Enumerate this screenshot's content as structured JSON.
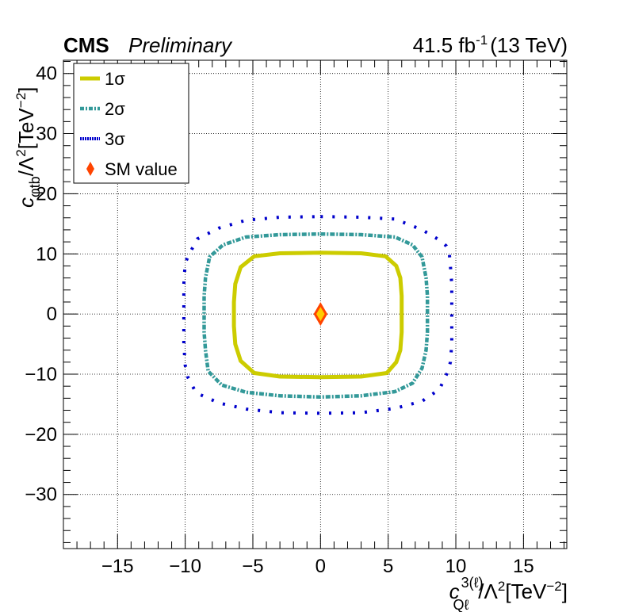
{
  "header": {
    "experiment": "CMS",
    "status": "Preliminary",
    "luminosity": "41.5 fb",
    "luminosity_exp": "-1",
    "energy": "(13 TeV)"
  },
  "axes": {
    "x_label": {
      "var": "c",
      "sub": "Qℓ",
      "sup": "3(ℓ)",
      "rest": "/Λ",
      "rest_sup": "2",
      "unit": "[TeV",
      "unit_sup": "−2",
      "close": "]"
    },
    "y_label": {
      "var": "c",
      "sub": "φtb",
      "rest": "/Λ",
      "rest_sup": "2",
      "unit": "[TeV",
      "unit_sup": "−2",
      "close": "]"
    }
  },
  "legend": {
    "items": [
      {
        "label": "1σ",
        "style": "solid",
        "color": "#cccc00"
      },
      {
        "label": "2σ",
        "style": "dash-dot",
        "color": "#339999"
      },
      {
        "label": "3σ",
        "style": "dotted",
        "color": "#0000cc"
      },
      {
        "label": "SM value",
        "style": "marker",
        "color": "#ff4400"
      }
    ]
  },
  "chart_data": {
    "type": "scatter",
    "subtype": "contour",
    "xlim": [
      -19,
      18.2
    ],
    "ylim": [
      -39,
      42.2
    ],
    "x_ticks": [
      -15,
      -10,
      -5,
      0,
      5,
      10,
      15
    ],
    "x_tick_labels": [
      "−15",
      "−10",
      "−5",
      "0",
      "5",
      "10",
      "15"
    ],
    "y_ticks": [
      -30,
      -20,
      -10,
      0,
      10,
      20,
      30,
      40
    ],
    "y_tick_labels": [
      "−30",
      "−20",
      "−10",
      "0",
      "10",
      "20",
      "30",
      "40"
    ],
    "grid": true,
    "legend_position": "top-left",
    "series": [
      {
        "name": "1σ",
        "color": "#cccc00",
        "style": "solid",
        "points": [
          [
            0,
            10.2
          ],
          [
            3,
            10.1
          ],
          [
            4.8,
            9.6
          ],
          [
            5.6,
            8
          ],
          [
            5.9,
            6
          ],
          [
            6,
            3
          ],
          [
            6,
            0
          ],
          [
            6,
            -3
          ],
          [
            5.9,
            -6
          ],
          [
            5.6,
            -8
          ],
          [
            4.9,
            -9.8
          ],
          [
            3,
            -10.4
          ],
          [
            0,
            -10.5
          ],
          [
            -3,
            -10.4
          ],
          [
            -4.9,
            -9.8
          ],
          [
            -5.9,
            -7.8
          ],
          [
            -6.3,
            -5
          ],
          [
            -6.4,
            -2
          ],
          [
            -6.4,
            0
          ],
          [
            -6.4,
            2
          ],
          [
            -6.3,
            5
          ],
          [
            -5.9,
            7.8
          ],
          [
            -4.9,
            9.6
          ],
          [
            -3,
            10.1
          ],
          [
            0,
            10.2
          ]
        ]
      },
      {
        "name": "2σ",
        "color": "#339999",
        "style": "dash-dot",
        "points": [
          [
            0,
            13.3
          ],
          [
            3,
            13.2
          ],
          [
            5.5,
            12.8
          ],
          [
            6.8,
            11.5
          ],
          [
            7.5,
            9.5
          ],
          [
            7.8,
            6
          ],
          [
            7.9,
            3
          ],
          [
            7.9,
            0
          ],
          [
            7.9,
            -3
          ],
          [
            7.8,
            -6
          ],
          [
            7.5,
            -9
          ],
          [
            6.8,
            -11.5
          ],
          [
            5.5,
            -12.9
          ],
          [
            3,
            -13.6
          ],
          [
            0,
            -13.8
          ],
          [
            -3,
            -13.6
          ],
          [
            -5.5,
            -13
          ],
          [
            -7.3,
            -11.8
          ],
          [
            -8.3,
            -9.5
          ],
          [
            -8.5,
            -6
          ],
          [
            -8.6,
            -3
          ],
          [
            -8.6,
            0
          ],
          [
            -8.6,
            3
          ],
          [
            -8.5,
            6
          ],
          [
            -8.2,
            9.5
          ],
          [
            -7.2,
            11.5
          ],
          [
            -5.5,
            12.8
          ],
          [
            -3,
            13.2
          ],
          [
            0,
            13.3
          ]
        ]
      },
      {
        "name": "3σ",
        "color": "#0000cc",
        "style": "dotted",
        "points": [
          [
            0,
            16.2
          ],
          [
            3,
            16.1
          ],
          [
            5.5,
            15.8
          ],
          [
            7.5,
            14
          ],
          [
            8.8,
            12.3
          ],
          [
            9.3,
            11.3
          ],
          [
            9.5,
            10.5
          ],
          [
            9.6,
            8
          ],
          [
            9.7,
            5
          ],
          [
            9.7,
            0
          ],
          [
            9.7,
            -5
          ],
          [
            9.6,
            -8
          ],
          [
            9.4,
            -9.6
          ],
          [
            9.1,
            -11
          ],
          [
            8.8,
            -12.5
          ],
          [
            7.5,
            -14.5
          ],
          [
            5.5,
            -15.7
          ],
          [
            3,
            -16.4
          ],
          [
            0,
            -16.5
          ],
          [
            -3,
            -16.4
          ],
          [
            -5.5,
            -15.8
          ],
          [
            -7.5,
            -14.8
          ],
          [
            -9.2,
            -13.1
          ],
          [
            -9.8,
            -10.5
          ],
          [
            -10,
            -8.5
          ],
          [
            -10.1,
            -5
          ],
          [
            -10.1,
            0
          ],
          [
            -10.1,
            5
          ],
          [
            -10,
            8.5
          ],
          [
            -9.7,
            10
          ],
          [
            -9.1,
            12.5
          ],
          [
            -7.5,
            14.3
          ],
          [
            -5.5,
            15.6
          ],
          [
            -3,
            16.1
          ],
          [
            0,
            16.2
          ]
        ]
      },
      {
        "name": "SM value",
        "color": "#ff4400",
        "style": "marker",
        "points": [
          [
            0,
            0
          ]
        ]
      }
    ]
  }
}
